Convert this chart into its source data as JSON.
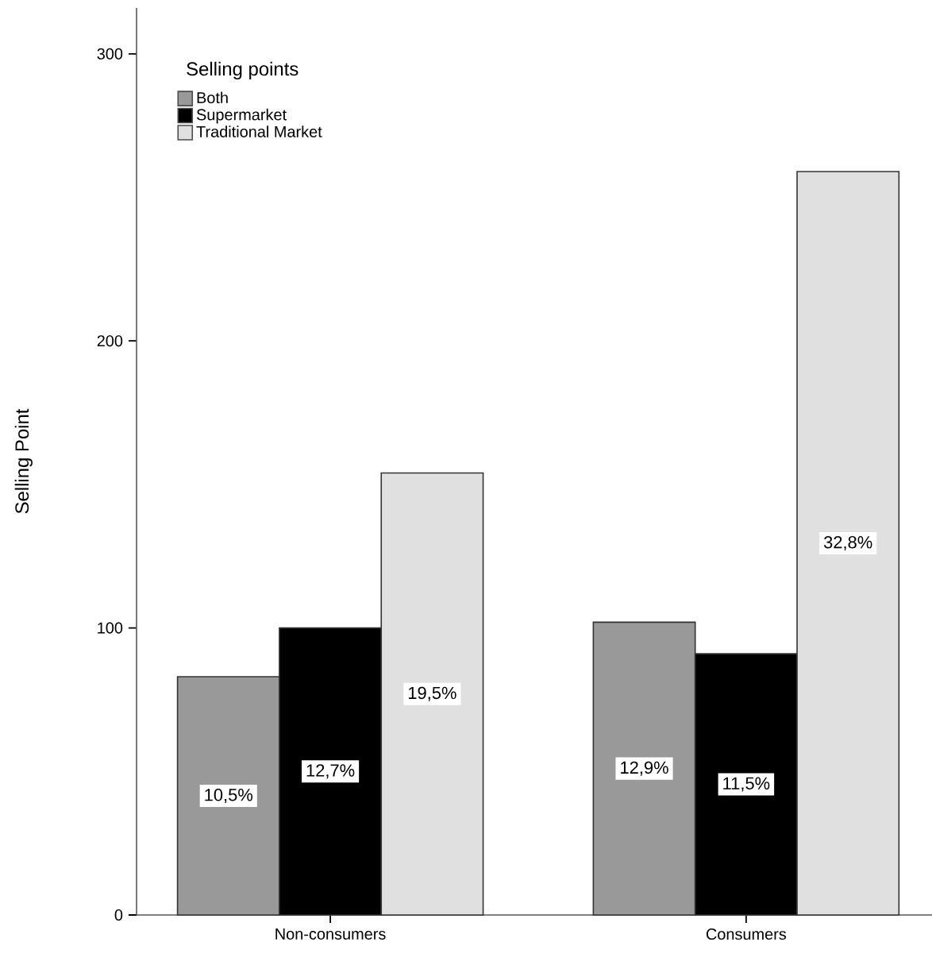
{
  "chart_data": {
    "type": "bar",
    "ylabel": "Selling Point",
    "legend_title": "Selling points",
    "legend": "top left",
    "grid": false,
    "categories": [
      "Non-consumers",
      "Consumers"
    ],
    "ylim": [
      0,
      316
    ],
    "yticks": [
      0,
      100,
      200,
      300
    ],
    "series": [
      {
        "name": "Both",
        "color": "#999999",
        "values": [
          83,
          102
        ]
      },
      {
        "name": "Supermarket",
        "color": "#000000",
        "values": [
          100,
          91
        ]
      },
      {
        "name": "Traditional Market",
        "color": "#e0e0e0",
        "values": [
          154,
          259
        ]
      }
    ],
    "annotations": [
      "10,5%",
      "12,7%",
      "19,5%",
      "12,9%",
      "11,5%",
      "32,8%"
    ]
  }
}
